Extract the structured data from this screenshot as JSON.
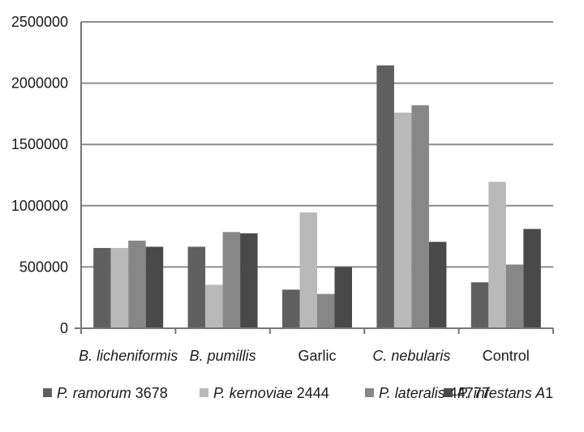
{
  "chart_data": {
    "type": "bar",
    "title": "",
    "xlabel": "",
    "ylabel": "",
    "ylim": [
      0,
      2500000
    ],
    "yticks": [
      "0",
      "500000",
      "1000000",
      "1500000",
      "2000000",
      "2500000"
    ],
    "grid": true,
    "legend_position": "bottom",
    "categories": [
      {
        "label": "B. licheniformis",
        "italic": true
      },
      {
        "label": "B. pumillis",
        "italic": true
      },
      {
        "label": "Garlic",
        "italic": false
      },
      {
        "label": "C. nebularis",
        "italic": true
      },
      {
        "label": "Control",
        "italic": false
      }
    ],
    "series": [
      {
        "name_italic": "P. ramorum",
        "name_plain": "3678",
        "color": "#5f5f5f",
        "values": [
          655000,
          665000,
          315000,
          2145000,
          375000
        ]
      },
      {
        "name_italic": "P. kernoviae",
        "name_plain": "2444",
        "color": "#b9b9b9",
        "values": [
          655000,
          355000,
          945000,
          1760000,
          1195000
        ]
      },
      {
        "name_italic": "P. lateralis",
        "name_plain": "44777",
        "color": "#878787",
        "values": [
          715000,
          785000,
          280000,
          1820000,
          520000
        ]
      },
      {
        "name_italic": "P. infestans A",
        "name_plain": "1",
        "color": "#494949",
        "values": [
          665000,
          775000,
          500000,
          705000,
          810000
        ]
      }
    ]
  }
}
